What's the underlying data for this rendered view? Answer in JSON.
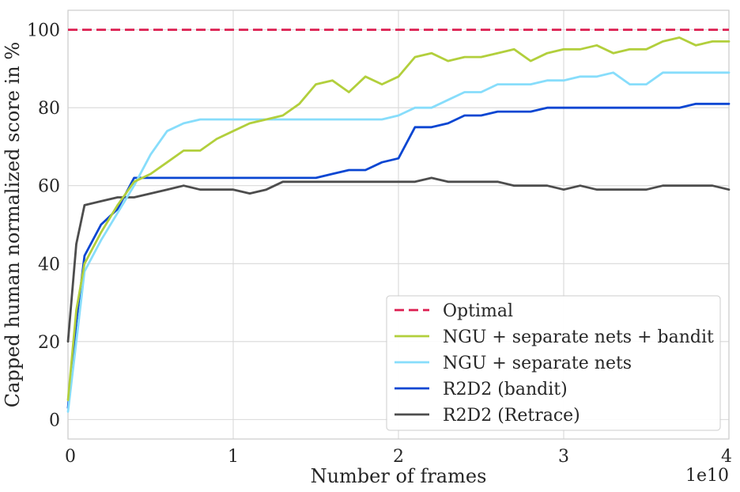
{
  "chart_data": {
    "type": "line",
    "title": "",
    "xlabel": "Number of  frames",
    "ylabel": "Capped human normalized score in %",
    "x_offset_label": "1e10",
    "xlim": [
      0,
      4
    ],
    "ylim": [
      -5,
      105
    ],
    "xticks": [
      0,
      1,
      2,
      3,
      4
    ],
    "xtick_labels": [
      "0",
      "1",
      "2",
      "3",
      "4"
    ],
    "yticks": [
      0,
      20,
      40,
      60,
      80,
      100
    ],
    "ytick_labels": [
      "0",
      "20",
      "40",
      "60",
      "80",
      "100"
    ],
    "grid": true,
    "legend_position": "lower-right",
    "optimal": {
      "name": "Optimal",
      "y": 100,
      "color": "#dc1e50",
      "style": "dashed"
    },
    "series": [
      {
        "name": "NGU + separate nets + bandit",
        "color": "#b2cf3c",
        "x": [
          0,
          0.05,
          0.1,
          0.2,
          0.3,
          0.4,
          0.5,
          0.6,
          0.7,
          0.8,
          0.9,
          1.0,
          1.1,
          1.2,
          1.3,
          1.4,
          1.5,
          1.6,
          1.7,
          1.8,
          1.9,
          2.0,
          2.1,
          2.2,
          2.3,
          2.4,
          2.5,
          2.6,
          2.7,
          2.8,
          2.9,
          3.0,
          3.1,
          3.2,
          3.3,
          3.4,
          3.5,
          3.6,
          3.7,
          3.8,
          3.9,
          4.0
        ],
        "y": [
          5,
          28,
          40,
          48,
          55,
          61,
          63,
          66,
          69,
          69,
          72,
          74,
          76,
          77,
          78,
          81,
          86,
          87,
          84,
          88,
          86,
          88,
          93,
          94,
          92,
          93,
          93,
          94,
          95,
          92,
          94,
          95,
          95,
          96,
          94,
          95,
          95,
          97,
          98,
          96,
          97,
          97
        ]
      },
      {
        "name": "NGU + separate nets",
        "color": "#87ddfb",
        "x": [
          0,
          0.05,
          0.1,
          0.2,
          0.3,
          0.4,
          0.5,
          0.6,
          0.7,
          0.8,
          0.9,
          1.0,
          1.1,
          1.2,
          1.3,
          1.4,
          1.5,
          1.6,
          1.7,
          1.8,
          1.9,
          2.0,
          2.1,
          2.2,
          2.3,
          2.4,
          2.5,
          2.6,
          2.7,
          2.8,
          2.9,
          3.0,
          3.1,
          3.2,
          3.3,
          3.4,
          3.5,
          3.6,
          3.7,
          3.8,
          3.9,
          4.0
        ],
        "y": [
          2,
          20,
          38,
          46,
          53,
          60,
          68,
          74,
          76,
          77,
          77,
          77,
          77,
          77,
          77,
          77,
          77,
          77,
          77,
          77,
          77,
          78,
          80,
          80,
          82,
          84,
          84,
          86,
          86,
          86,
          87,
          87,
          88,
          88,
          89,
          86,
          86,
          89,
          89,
          89,
          89,
          89
        ]
      },
      {
        "name": "R2D2 (bandit)",
        "color": "#0a46d2",
        "x": [
          0,
          0.05,
          0.1,
          0.2,
          0.3,
          0.4,
          0.5,
          0.6,
          0.7,
          0.8,
          0.9,
          1.0,
          1.1,
          1.2,
          1.3,
          1.4,
          1.5,
          1.6,
          1.7,
          1.8,
          1.9,
          2.0,
          2.1,
          2.2,
          2.3,
          2.4,
          2.5,
          2.6,
          2.7,
          2.8,
          2.9,
          3.0,
          3.1,
          3.2,
          3.3,
          3.4,
          3.5,
          3.6,
          3.7,
          3.8,
          3.9,
          4.0
        ],
        "y": [
          3,
          25,
          42,
          50,
          54,
          62,
          62,
          62,
          62,
          62,
          62,
          62,
          62,
          62,
          62,
          62,
          62,
          63,
          64,
          64,
          66,
          67,
          75,
          75,
          76,
          78,
          78,
          79,
          79,
          79,
          80,
          80,
          80,
          80,
          80,
          80,
          80,
          80,
          80,
          81,
          81,
          81
        ]
      },
      {
        "name": "R2D2 (Retrace)",
        "color": "#4d4d4d",
        "x": [
          0,
          0.05,
          0.1,
          0.2,
          0.3,
          0.4,
          0.5,
          0.6,
          0.7,
          0.8,
          0.9,
          1.0,
          1.1,
          1.2,
          1.3,
          1.4,
          1.5,
          1.6,
          1.7,
          1.8,
          1.9,
          2.0,
          2.1,
          2.2,
          2.3,
          2.4,
          2.5,
          2.6,
          2.7,
          2.8,
          2.9,
          3.0,
          3.1,
          3.2,
          3.3,
          3.4,
          3.5,
          3.6,
          3.7,
          3.8,
          3.9,
          4.0
        ],
        "y": [
          20,
          45,
          55,
          56,
          57,
          57,
          58,
          59,
          60,
          59,
          59,
          59,
          58,
          59,
          61,
          61,
          61,
          61,
          61,
          61,
          61,
          61,
          61,
          62,
          61,
          61,
          61,
          61,
          60,
          60,
          60,
          59,
          60,
          59,
          59,
          59,
          59,
          60,
          60,
          60,
          60,
          59
        ]
      }
    ]
  }
}
